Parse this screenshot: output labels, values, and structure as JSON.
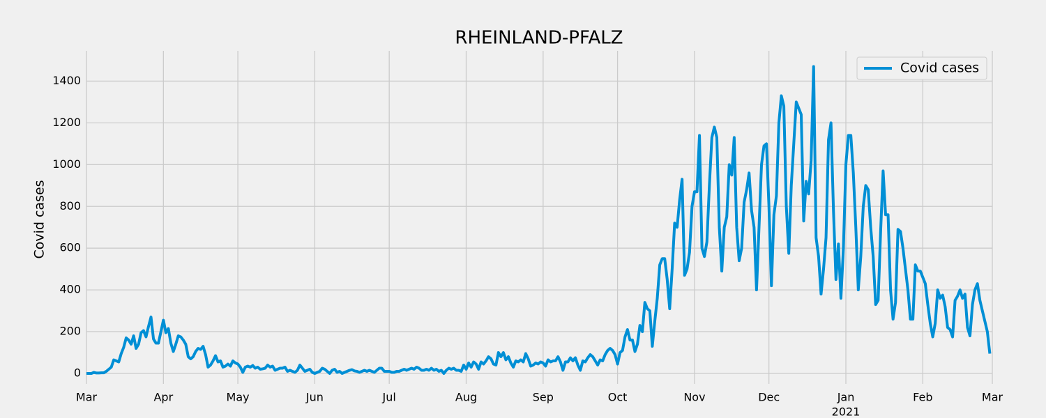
{
  "chart_data": {
    "type": "line",
    "title": "RHEINLAND-PFALZ",
    "ylabel": "Covid cases",
    "grid": true,
    "legend": "upper right",
    "x": [
      0,
      1,
      2,
      3,
      4,
      5,
      6,
      7,
      8,
      9,
      10,
      11,
      12,
      13,
      14,
      15,
      16,
      17,
      18,
      19,
      20,
      21,
      22,
      23,
      24,
      25,
      26,
      27,
      28,
      29,
      30,
      31,
      32,
      33,
      34,
      35,
      36,
      37,
      38,
      39,
      40,
      41,
      42,
      43,
      44,
      45,
      46,
      47,
      48,
      49,
      50,
      51,
      52,
      53,
      54,
      55,
      56,
      57,
      58,
      59,
      60,
      61,
      62,
      63,
      64,
      65,
      66,
      67,
      68,
      69,
      70,
      71,
      72,
      73,
      74,
      75,
      76,
      77,
      78,
      79,
      80,
      81,
      82,
      83,
      84,
      85,
      86,
      87,
      88,
      89,
      90,
      91,
      92,
      93,
      94,
      95,
      96,
      97,
      98,
      99,
      100,
      101,
      102,
      103,
      104,
      105,
      106,
      107,
      108,
      109,
      110,
      111,
      112,
      113,
      114,
      115,
      116,
      117,
      118,
      119,
      120,
      121,
      122,
      123,
      124,
      125,
      126,
      127,
      128,
      129,
      130,
      131,
      132,
      133,
      134,
      135,
      136,
      137,
      138,
      139,
      140,
      141,
      142,
      143,
      144,
      145,
      146,
      147,
      148,
      149,
      150,
      151,
      152,
      153,
      154,
      155,
      156,
      157,
      158,
      159,
      160,
      161,
      162,
      163,
      164,
      165,
      166,
      167,
      168,
      169,
      170,
      171,
      172,
      173,
      174,
      175,
      176,
      177,
      178,
      179,
      180,
      181,
      182,
      183,
      184,
      185,
      186,
      187,
      188,
      189,
      190,
      191,
      192,
      193,
      194,
      195,
      196,
      197,
      198,
      199,
      200,
      201,
      202,
      203,
      204,
      205,
      206,
      207,
      208,
      209,
      210,
      211,
      212,
      213,
      214,
      215,
      216,
      217,
      218,
      219,
      220,
      221,
      222,
      223,
      224,
      225,
      226,
      227,
      228,
      229,
      230,
      231,
      232,
      233,
      234,
      235,
      236,
      237,
      238,
      239,
      240,
      241,
      242,
      243,
      244,
      245,
      246,
      247,
      248,
      249,
      250,
      251,
      252,
      253,
      254,
      255,
      256,
      257,
      258,
      259,
      260,
      261,
      262,
      263,
      264,
      265,
      266,
      267,
      268,
      269,
      270,
      271,
      272,
      273,
      274,
      275,
      276,
      277,
      278,
      279,
      280,
      281,
      282,
      283,
      284,
      285,
      286,
      287,
      288,
      289,
      290,
      291,
      292,
      293,
      294,
      295,
      296,
      297,
      298,
      299,
      300,
      301,
      302,
      303,
      304,
      305,
      306,
      307,
      308,
      309,
      310,
      311,
      312,
      313,
      314,
      315,
      316,
      317,
      318,
      319,
      320,
      321,
      322,
      323,
      324,
      325,
      326,
      327,
      328,
      329,
      330,
      331,
      332,
      333,
      334,
      335,
      336,
      337,
      338,
      339,
      340,
      341,
      342,
      343,
      344,
      345,
      346,
      347,
      348,
      349,
      350,
      351,
      352,
      353,
      354,
      355,
      356,
      357,
      358,
      359,
      360,
      361,
      362,
      363,
      364
    ],
    "series": [
      {
        "name": "Covid cases",
        "color": "#008fd5",
        "values": [
          0,
          0,
          0,
          5,
          2,
          2,
          3,
          3,
          10,
          20,
          30,
          65,
          60,
          55,
          95,
          125,
          170,
          160,
          140,
          180,
          120,
          140,
          195,
          205,
          175,
          225,
          270,
          165,
          145,
          145,
          200,
          255,
          195,
          215,
          145,
          105,
          140,
          180,
          175,
          160,
          140,
          80,
          70,
          80,
          105,
          120,
          115,
          130,
          90,
          30,
          40,
          60,
          85,
          55,
          60,
          30,
          35,
          45,
          35,
          60,
          50,
          45,
          30,
          5,
          30,
          35,
          30,
          38,
          25,
          30,
          20,
          22,
          25,
          40,
          30,
          35,
          15,
          20,
          25,
          25,
          30,
          10,
          15,
          10,
          5,
          15,
          40,
          25,
          10,
          15,
          20,
          5,
          0,
          5,
          10,
          25,
          20,
          10,
          0,
          15,
          20,
          5,
          10,
          0,
          5,
          10,
          15,
          18,
          12,
          10,
          5,
          10,
          15,
          10,
          15,
          10,
          5,
          15,
          25,
          25,
          10,
          10,
          10,
          5,
          5,
          10,
          10,
          15,
          20,
          15,
          20,
          25,
          20,
          30,
          25,
          15,
          15,
          20,
          15,
          25,
          15,
          20,
          10,
          15,
          0,
          15,
          25,
          20,
          25,
          15,
          15,
          10,
          40,
          20,
          50,
          30,
          55,
          45,
          20,
          55,
          45,
          60,
          80,
          70,
          45,
          40,
          100,
          80,
          100,
          65,
          80,
          50,
          30,
          60,
          55,
          65,
          55,
          95,
          70,
          35,
          40,
          50,
          45,
          55,
          50,
          35,
          65,
          55,
          60,
          60,
          80,
          55,
          15,
          55,
          55,
          75,
          60,
          75,
          40,
          15,
          60,
          55,
          75,
          90,
          80,
          60,
          40,
          65,
          60,
          90,
          110,
          120,
          110,
          90,
          45,
          100,
          110,
          175,
          210,
          160,
          160,
          105,
          140,
          230,
          200,
          340,
          310,
          300,
          130,
          250,
          360,
          520,
          550,
          550,
          450,
          310,
          500,
          720,
          700,
          830,
          930,
          470,
          500,
          580,
          800,
          870,
          870,
          1140,
          600,
          560,
          630,
          900,
          1130,
          1180,
          1130,
          700,
          490,
          700,
          750,
          1000,
          950,
          1130,
          700,
          540,
          600,
          820,
          880,
          960,
          780,
          700,
          400,
          700,
          1000,
          1090,
          1100,
          800,
          420,
          760,
          850,
          1200,
          1330,
          1280,
          800,
          575,
          900,
          1100,
          1300,
          1270,
          1240,
          730,
          920,
          860,
          1020,
          1470,
          650,
          560,
          380,
          500,
          650,
          1120,
          1200,
          780,
          450,
          620,
          360,
          600,
          1000,
          1140,
          1140,
          960,
          700,
          400,
          560,
          800,
          900,
          880,
          700,
          560,
          330,
          350,
          680,
          970,
          760,
          760,
          400,
          260,
          340,
          690,
          680,
          600,
          500,
          400,
          260,
          260,
          520,
          490,
          490,
          460,
          430,
          330,
          240,
          175,
          240,
          400,
          360,
          375,
          320,
          220,
          210,
          175,
          350,
          370,
          400,
          360,
          380,
          220,
          180,
          330,
          400,
          430,
          350,
          300,
          250,
          200,
          95
        ]
      }
    ],
    "xlim": [
      0,
      365
    ],
    "xticks": [
      {
        "value": 0,
        "label": "Mar"
      },
      {
        "value": 31,
        "label": "Apr"
      },
      {
        "value": 61,
        "label": "May"
      },
      {
        "value": 92,
        "label": "Jun"
      },
      {
        "value": 122,
        "label": "Jul"
      },
      {
        "value": 153,
        "label": "Aug"
      },
      {
        "value": 184,
        "label": "Sep"
      },
      {
        "value": 214,
        "label": "Oct"
      },
      {
        "value": 245,
        "label": "Nov"
      },
      {
        "value": 275,
        "label": "Dec"
      },
      {
        "value": 306,
        "label": "Jan"
      },
      {
        "value": 337,
        "label": "Feb"
      },
      {
        "value": 365,
        "label": "Mar"
      }
    ],
    "x_year_labels": [
      {
        "value": 306,
        "label": "2021"
      }
    ],
    "ylim": [
      -50,
      1545
    ],
    "yticks": [
      0,
      200,
      400,
      600,
      800,
      1000,
      1200,
      1400
    ]
  }
}
